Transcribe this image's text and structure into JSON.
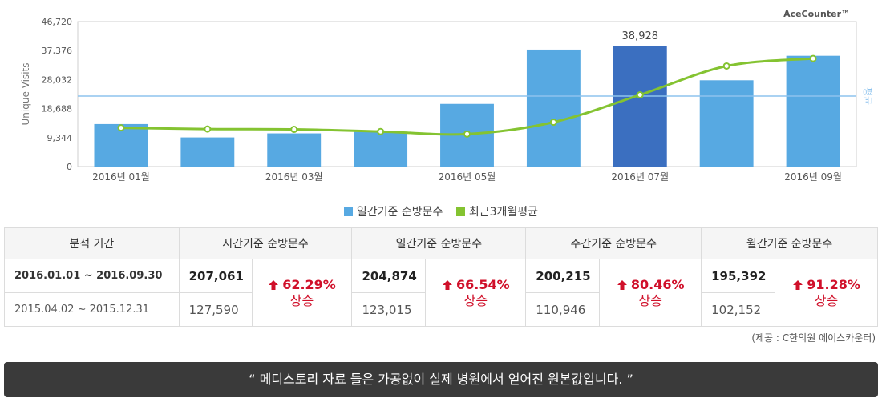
{
  "chart_data": {
    "type": "bar",
    "brand": "AceCounter™",
    "ylabel": "Unique Visits",
    "ylim": [
      0,
      46720
    ],
    "y_ticks": [
      "0",
      "9,344",
      "18,688",
      "28,032",
      "37,376",
      "46,720"
    ],
    "categories": [
      "2016-01",
      "2016-02",
      "2016-03",
      "2016-04",
      "2016-05",
      "2016-06",
      "2016-07",
      "2016-08",
      "2016-09"
    ],
    "x_tick_labels": [
      "2016년 01월",
      "",
      "2016년 03월",
      "",
      "2016년 05월",
      "",
      "2016년 07월",
      "",
      "2016년 09월"
    ],
    "series": [
      {
        "name": "일간기준 순방문수",
        "type": "bar",
        "color": "#57a9e2",
        "highlight_color": "#3b6fc0",
        "highlight_index": 6,
        "values": [
          13700,
          9400,
          10700,
          11200,
          20200,
          37700,
          38928,
          27800,
          35700
        ]
      },
      {
        "name": "최근3개월평균",
        "type": "line",
        "color": "#84c331",
        "values": [
          12500,
          12100,
          12000,
          11300,
          10500,
          14300,
          23100,
          32400,
          34800
        ]
      }
    ],
    "average": {
      "label": "평균",
      "value": 22700,
      "color": "#8ec3ee"
    },
    "annotation": {
      "index": 6,
      "text": "38,928"
    },
    "grid": false,
    "legend_position": "bottom"
  },
  "table": {
    "headers": [
      "분석 기간",
      "시간기준 순방문수",
      "일간기준 순방문수",
      "주간기준 순방문수",
      "월간기준 순방문수"
    ],
    "periods": [
      "2016.01.01 ~ 2016.09.30",
      "2015.04.02 ~ 2015.12.31"
    ],
    "groups": [
      {
        "current": "207,061",
        "previous": "127,590",
        "change": "62.29%",
        "word": "상승"
      },
      {
        "current": "204,874",
        "previous": "123,015",
        "change": "66.54%",
        "word": "상승"
      },
      {
        "current": "200,215",
        "previous": "110,946",
        "change": "80.46%",
        "word": "상승"
      },
      {
        "current": "195,392",
        "previous": "102,152",
        "change": "91.28%",
        "word": "상승"
      }
    ]
  },
  "source": "(제공 : C한의원 에이스카운터)",
  "banner": "“ 메디스토리 자료 들은 가공없이 실제 병원에서 얻어진 원본값입니다. ”"
}
